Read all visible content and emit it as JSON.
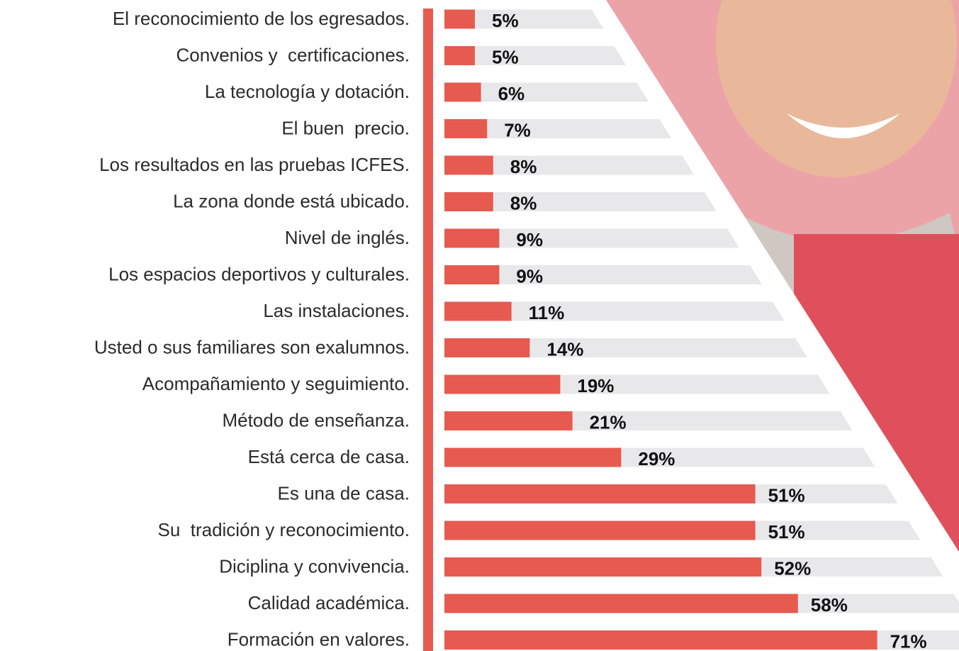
{
  "chart_data": {
    "type": "bar",
    "orientation": "horizontal",
    "color": "#e65a50",
    "track_color": "#e8e8ea",
    "categories": [
      "El reconocimiento de los egresados.",
      "Convenios y  certificaciones.",
      "La tecnología y dotación.",
      "El buen  precio.",
      "Los resultados en las pruebas ICFES.",
      "La zona donde está ubicado.",
      "Nivel de inglés.",
      "Los espacios deportivos y culturales.",
      "Las instalaciones.",
      "Usted o sus familiares son exalumnos.",
      "Acompañamiento y seguimiento.",
      "Método de enseñanza.",
      "Está cerca de casa.",
      "Es una de casa.",
      "Su  tradición y reconocimiento.",
      "Diciplina y convivencia.",
      "Calidad académica.",
      "Formación en valores."
    ],
    "values": [
      5,
      5,
      6,
      7,
      8,
      8,
      9,
      9,
      11,
      14,
      19,
      21,
      29,
      51,
      51,
      52,
      58,
      71
    ],
    "value_labels": [
      "5%",
      "5%",
      "6%",
      "7%",
      "8%",
      "8%",
      "9%",
      "9%",
      "11%",
      "14%",
      "19%",
      "21%",
      "29%",
      "51%",
      "51%",
      "52%",
      "58%",
      "71%"
    ]
  }
}
